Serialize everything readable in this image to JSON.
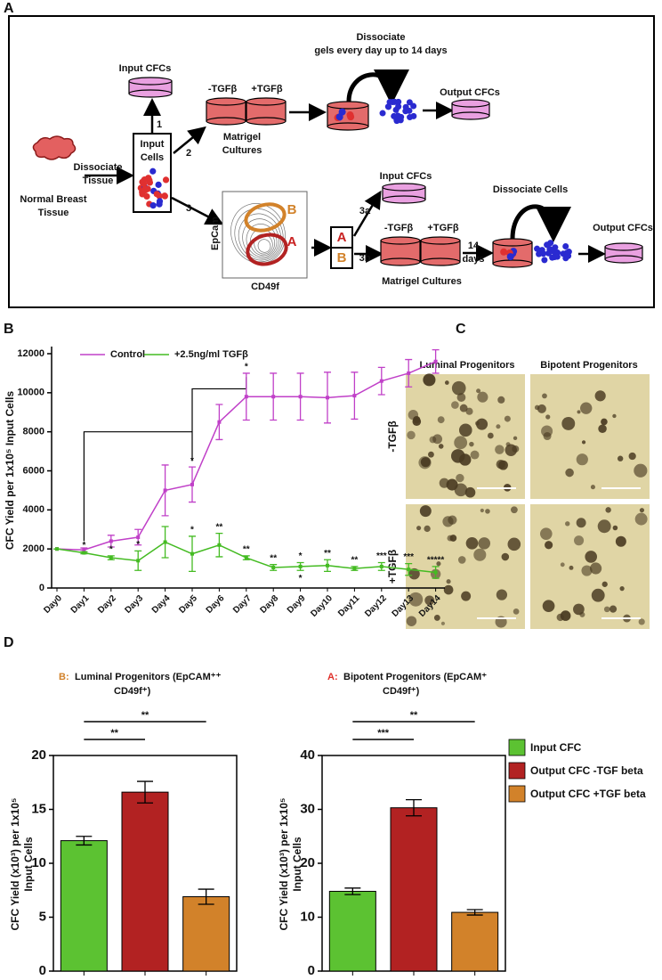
{
  "panel_labels": [
    "A",
    "B",
    "C",
    "D"
  ],
  "panel_a": {
    "labels": [
      "Input CFCs",
      "1",
      "-TGFβ",
      "+TGFβ",
      [
        "Dissociate",
        "gels every day up to 14 days"
      ],
      "Output CFCs",
      [
        "Input",
        "Cells"
      ],
      "2",
      [
        "Matrigel",
        "Cultures"
      ],
      [
        "Dissociate",
        "Tissue"
      ],
      [
        "Normal Breast",
        "Tissue"
      ],
      "3",
      "EpCam",
      "CD49f",
      "B",
      "A",
      "A",
      "B",
      "Input CFCs",
      "3a",
      "3b",
      "-TGFβ",
      "+TGFβ",
      "Matrigel Cultures",
      [
        "14",
        "days"
      ],
      "Dissociate Cells",
      "Output CFCs"
    ]
  },
  "panel_c": {
    "columns": [
      "Luminal Progenitors",
      "Bipotent Progenitors"
    ],
    "rows": [
      "-TGFβ",
      "+TGFβ"
    ]
  },
  "chart_data": [
    {
      "type": "line",
      "ylabel": "CFC Yield per 1x10⁵ Input Cells",
      "categories": [
        "Day0",
        "Day1",
        "Day2",
        "Day3",
        "Day4",
        "Day5",
        "Day6",
        "Day7",
        "Day8",
        "Day9",
        "Day10",
        "Day11",
        "Day12",
        "Day13",
        "Day14"
      ],
      "ylim": [
        0,
        12000
      ],
      "yticks": [
        0,
        2000,
        4000,
        6000,
        8000,
        10000,
        12000
      ],
      "legend": "upper left",
      "series": [
        {
          "name": "Control",
          "color": "#c040c8",
          "values": [
            2000,
            1950,
            2400,
            2600,
            5000,
            5300,
            8500,
            9800,
            9800,
            9800,
            9750,
            9850,
            10600,
            11000,
            11600
          ],
          "errors": [
            0,
            100,
            300,
            400,
            1300,
            900,
            900,
            1200,
            1200,
            1200,
            1300,
            1200,
            700,
            700,
            600
          ],
          "annotations": [
            {
              "category": "Day5",
              "text": "*"
            },
            {
              "category": "Day7",
              "text": "*"
            }
          ]
        },
        {
          "name": "+2.5ng/ml TGFβ",
          "color": "#44bb22",
          "values": [
            2000,
            1800,
            1550,
            1400,
            2350,
            1750,
            2200,
            1550,
            1050,
            1100,
            1150,
            1000,
            1100,
            950,
            800
          ],
          "errors": [
            0,
            50,
            100,
            500,
            800,
            900,
            600,
            100,
            150,
            200,
            300,
            100,
            200,
            300,
            300
          ],
          "annotations": [
            {
              "category": "Day1",
              "text": "*"
            },
            {
              "category": "Day2",
              "text": "*"
            },
            {
              "category": "Day3",
              "text": "*"
            },
            {
              "category": "Day5",
              "text": "*"
            },
            {
              "category": "Day6",
              "text": "**"
            },
            {
              "category": "Day7",
              "text": "**"
            },
            {
              "category": "Day8",
              "text": "**"
            },
            {
              "category": "Day9",
              "text": "*"
            },
            {
              "category": "Day9",
              "text": "*"
            },
            {
              "category": "Day10",
              "text": "**"
            },
            {
              "category": "Day11",
              "text": "**"
            },
            {
              "category": "Day12",
              "text": "***"
            },
            {
              "category": "Day13",
              "text": "***"
            },
            {
              "category": "Day14",
              "text": "*****"
            }
          ]
        }
      ]
    },
    {
      "type": "bar",
      "title_prefix": "B:",
      "title_prefix_color": "#d2822a",
      "title": [
        "Luminal Progenitors (EpCAM⁺⁺",
        "CD49f⁺)"
      ],
      "ylabel": [
        "CFC Yield (x10³) per 1x10⁵",
        "Input Cells"
      ],
      "categories": [
        null
      ],
      "ylim": [
        0,
        20
      ],
      "yticks": [
        0,
        5,
        10,
        15,
        20
      ],
      "significance": [
        "**",
        "**"
      ],
      "series": [
        {
          "color": "#5cc232",
          "values": [
            12.1
          ],
          "errors": [
            0.4
          ]
        },
        {
          "color": "#b22222",
          "values": [
            16.6
          ],
          "errors": [
            1.0
          ]
        },
        {
          "color": "#d2822a",
          "values": [
            6.9
          ],
          "errors": [
            0.7
          ]
        }
      ]
    },
    {
      "type": "bar",
      "title_prefix": "A:",
      "title_prefix_color": "#e0302a",
      "title": [
        "Bipotent Progenitors (EpCAM⁺",
        "CD49f⁺)"
      ],
      "ylabel": [
        "CFC Yield (x10³) per 1x10⁵",
        "Input Cells"
      ],
      "categories": [
        null
      ],
      "ylim": [
        0,
        40
      ],
      "yticks": [
        0,
        10,
        20,
        30,
        40
      ],
      "significance": [
        "***",
        "**"
      ],
      "legend": "right",
      "series": [
        {
          "name": "Input CFC",
          "color": "#5cc232",
          "values": [
            14.8
          ],
          "errors": [
            0.6
          ]
        },
        {
          "name": "Output CFC  -TGF beta",
          "color": "#b22222",
          "values": [
            30.3
          ],
          "errors": [
            1.5
          ]
        },
        {
          "name": "Output CFC  +TGF beta",
          "color": "#d2822a",
          "values": [
            10.9
          ],
          "errors": [
            0.5
          ]
        }
      ]
    }
  ]
}
